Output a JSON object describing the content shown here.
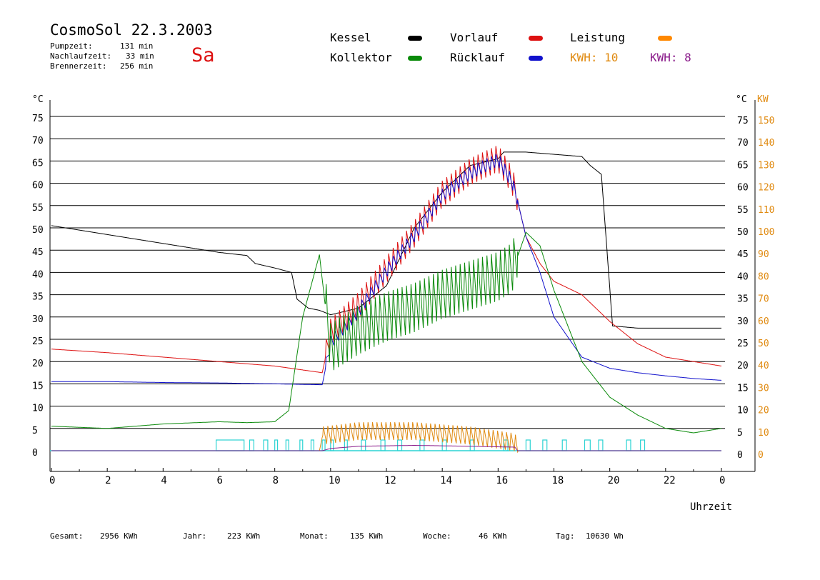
{
  "header": {
    "title": "CosmoSol 22.3.2003",
    "day": "Sa",
    "stats": [
      {
        "label": "Pumpzeit:",
        "value": "131 min"
      },
      {
        "label": "Nachlaufzeit:",
        "value": "33 min"
      },
      {
        "label": "Brennerzeit:",
        "value": "256 min"
      }
    ]
  },
  "legend": {
    "kessel": {
      "label": "Kessel",
      "color": "#000000"
    },
    "vorlauf": {
      "label": "Vorlauf",
      "color": "#dd1111"
    },
    "leistung": {
      "label": "Leistung",
      "color": "#ff8800"
    },
    "kollektor": {
      "label": "Kollektor",
      "color": "#0a8a0a"
    },
    "ruecklauf": {
      "label": "Rücklauf",
      "color": "#1111cc"
    },
    "kwh1": {
      "label": "KWH: 10",
      "color": "#e08a10"
    },
    "kwh2": {
      "label": "KWH: 8",
      "color": "#8a1a8a"
    }
  },
  "footer": {
    "gesamt": {
      "label": "Gesamt:",
      "value": "2956 KWh"
    },
    "jahr": {
      "label": "Jahr:",
      "value": "223 KWh"
    },
    "monat": {
      "label": "Monat:",
      "value": "135 KWh"
    },
    "woche": {
      "label": "Woche:",
      "value": "46 KWh"
    },
    "tag": {
      "label": "Tag:",
      "value": "10630 Wh"
    }
  },
  "chart_data": {
    "type": "line",
    "xlabel": "Uhrzeit",
    "ylabel_left": "°C",
    "ylabel_right_temp": "°C",
    "ylabel_right_power": "KW",
    "xlim": [
      0,
      24
    ],
    "ylim": [
      0,
      75
    ],
    "ylim_power": [
      0,
      150
    ],
    "grid": true,
    "x_ticks": [
      "0",
      "2",
      "4",
      "6",
      "8",
      "10",
      "12",
      "14",
      "16",
      "18",
      "20",
      "22",
      "0"
    ],
    "y_ticks": [
      "0",
      "5",
      "10",
      "15",
      "20",
      "25",
      "30",
      "35",
      "40",
      "45",
      "50",
      "55",
      "60",
      "65",
      "70",
      "75"
    ],
    "y_ticks_power": [
      "0",
      "10",
      "20",
      "30",
      "40",
      "50",
      "60",
      "70",
      "80",
      "90",
      "100",
      "110",
      "120",
      "130",
      "140",
      "150"
    ],
    "series": [
      {
        "name": "Kessel",
        "color": "#000000",
        "oscillate": false,
        "points": [
          [
            0,
            50.5
          ],
          [
            2,
            48.5
          ],
          [
            4,
            46.5
          ],
          [
            6,
            44.5
          ],
          [
            7,
            43.8
          ],
          [
            7.3,
            42
          ],
          [
            8,
            41
          ],
          [
            8.6,
            40
          ],
          [
            8.8,
            34
          ],
          [
            9.2,
            32
          ],
          [
            9.6,
            31.5
          ],
          [
            10,
            30.5
          ],
          [
            11,
            32
          ],
          [
            12,
            37
          ],
          [
            13,
            50
          ],
          [
            14,
            58
          ],
          [
            15,
            64
          ],
          [
            16,
            65.5
          ],
          [
            16.2,
            67
          ],
          [
            17,
            67
          ],
          [
            18,
            66.5
          ],
          [
            19,
            66
          ],
          [
            19.3,
            64
          ],
          [
            19.7,
            62
          ],
          [
            19.9,
            45
          ],
          [
            20.1,
            28
          ],
          [
            21,
            27.5
          ],
          [
            22,
            27.5
          ],
          [
            23,
            27.5
          ],
          [
            24,
            27.5
          ]
        ]
      },
      {
        "name": "Vorlauf",
        "color": "#dd1111",
        "oscillate": true,
        "osc_range": [
          9.8,
          16.7
        ],
        "osc_period": 0.16,
        "osc_amp": 6,
        "points": [
          [
            0,
            22.8
          ],
          [
            2,
            22
          ],
          [
            4,
            21
          ],
          [
            6,
            20
          ],
          [
            8,
            19
          ],
          [
            9.7,
            17.5
          ],
          [
            10,
            26
          ],
          [
            11,
            32
          ],
          [
            12,
            40
          ],
          [
            13,
            48
          ],
          [
            14,
            57
          ],
          [
            15,
            62
          ],
          [
            16,
            65
          ],
          [
            16.5,
            60
          ],
          [
            16.7,
            56
          ],
          [
            17,
            48
          ],
          [
            17.5,
            42
          ],
          [
            18,
            38
          ],
          [
            19,
            35
          ],
          [
            20,
            29
          ],
          [
            21,
            24
          ],
          [
            22,
            21
          ],
          [
            23,
            20
          ],
          [
            24,
            19
          ]
        ]
      },
      {
        "name": "Rücklauf",
        "color": "#1111cc",
        "oscillate": true,
        "osc_range": [
          9.8,
          16.7
        ],
        "osc_period": 0.16,
        "osc_amp": 3,
        "points": [
          [
            0,
            15.5
          ],
          [
            2,
            15.5
          ],
          [
            4,
            15.3
          ],
          [
            6,
            15.2
          ],
          [
            8,
            15
          ],
          [
            9.7,
            14.8
          ],
          [
            10,
            24
          ],
          [
            11,
            31
          ],
          [
            12,
            40
          ],
          [
            13,
            48
          ],
          [
            14,
            57
          ],
          [
            15,
            62
          ],
          [
            16,
            65
          ],
          [
            16.5,
            60
          ],
          [
            16.7,
            56
          ],
          [
            17,
            48
          ],
          [
            17.5,
            40
          ],
          [
            18,
            30
          ],
          [
            19,
            21
          ],
          [
            20,
            18.5
          ],
          [
            21,
            17.5
          ],
          [
            22,
            16.8
          ],
          [
            23,
            16.2
          ],
          [
            24,
            15.8
          ]
        ]
      },
      {
        "name": "Kollektor",
        "color": "#0a8a0a",
        "oscillate": true,
        "osc_range": [
          9.8,
          16.7
        ],
        "osc_period": 0.16,
        "osc_amp": 11,
        "points": [
          [
            0,
            5.5
          ],
          [
            2,
            5
          ],
          [
            4,
            6
          ],
          [
            6,
            6.5
          ],
          [
            7,
            6.3
          ],
          [
            8,
            6.5
          ],
          [
            8.5,
            9
          ],
          [
            9,
            30
          ],
          [
            9.6,
            44
          ],
          [
            10,
            22
          ],
          [
            11,
            26
          ],
          [
            12,
            29
          ],
          [
            13,
            31
          ],
          [
            14,
            34
          ],
          [
            15,
            36
          ],
          [
            16,
            38
          ],
          [
            16.5,
            40
          ],
          [
            17,
            49
          ],
          [
            17.5,
            46
          ],
          [
            18,
            36
          ],
          [
            19,
            20
          ],
          [
            20,
            12
          ],
          [
            21,
            8
          ],
          [
            22,
            5
          ],
          [
            23,
            4
          ],
          [
            24,
            5
          ]
        ]
      },
      {
        "name": "Leistung",
        "color": "#e08a10",
        "oscillate": true,
        "osc_range": [
          9.7,
          16.7
        ],
        "osc_period": 0.16,
        "osc_amp": 4,
        "points": [
          [
            0,
            0
          ],
          [
            9.6,
            0
          ],
          [
            9.7,
            3
          ],
          [
            11,
            4
          ],
          [
            13,
            4
          ],
          [
            15,
            3
          ],
          [
            16.6,
            1.5
          ],
          [
            16.7,
            0
          ],
          [
            24,
            0
          ]
        ]
      },
      {
        "name": "KWH",
        "color": "#8a1a8a",
        "oscillate": false,
        "points": [
          [
            0,
            0
          ],
          [
            9.7,
            0
          ],
          [
            10,
            0.5
          ],
          [
            11,
            1
          ],
          [
            13,
            1.2
          ],
          [
            15,
            1
          ],
          [
            16.6,
            0.8
          ],
          [
            16.7,
            0
          ],
          [
            24,
            0
          ]
        ]
      }
    ],
    "pump_intervals": [
      [
        5.9,
        6.9
      ],
      [
        7.1,
        7.25
      ],
      [
        7.6,
        7.75
      ],
      [
        8.0,
        8.1
      ],
      [
        8.4,
        8.5
      ],
      [
        8.9,
        9.0
      ],
      [
        9.3,
        9.4
      ],
      [
        9.7,
        9.8
      ],
      [
        10.0,
        10.1
      ],
      [
        10.5,
        10.6
      ],
      [
        11.1,
        11.25
      ],
      [
        11.8,
        11.95
      ],
      [
        12.4,
        12.55
      ],
      [
        13.2,
        13.35
      ],
      [
        14.0,
        14.15
      ],
      [
        15.0,
        15.15
      ],
      [
        16.2,
        16.35
      ],
      [
        17.0,
        17.15
      ],
      [
        17.6,
        17.75
      ],
      [
        18.3,
        18.45
      ],
      [
        19.1,
        19.3
      ],
      [
        19.6,
        19.75
      ],
      [
        20.6,
        20.75
      ],
      [
        21.1,
        21.25
      ]
    ]
  }
}
